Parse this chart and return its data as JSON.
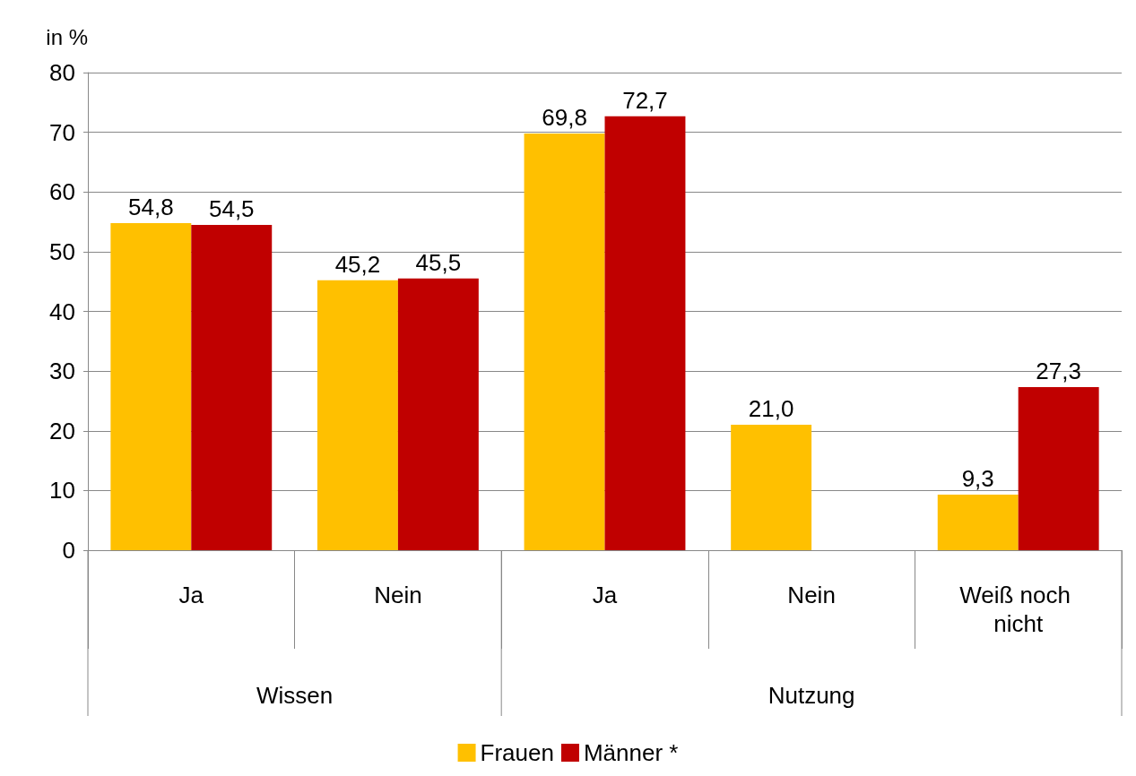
{
  "chart_data": {
    "type": "bar",
    "ylabel": "in %",
    "categories": [
      "Ja",
      "Nein",
      "Ja",
      "Nein",
      "Weiß noch nicht"
    ],
    "series": [
      {
        "name": "Frauen",
        "color": "#ffc000",
        "values": [
          54.8,
          45.2,
          69.8,
          21.0,
          9.3
        ],
        "value_labels": [
          "54,8",
          "45,2",
          "69,8",
          "21,0",
          "9,3"
        ]
      },
      {
        "name": "Männer *",
        "color": "#c00000",
        "values": [
          54.5,
          45.5,
          72.7,
          null,
          27.3
        ],
        "value_labels": [
          "54,5",
          "45,5",
          "72,7",
          null,
          "27,3"
        ]
      }
    ],
    "annotations": [
      "Wissen",
      "Nutzung"
    ],
    "ylim": [
      0,
      80
    ],
    "yticks": [
      0,
      10,
      20,
      30,
      40,
      50,
      60,
      70,
      80
    ],
    "grid": "y",
    "legend": "bottom"
  }
}
